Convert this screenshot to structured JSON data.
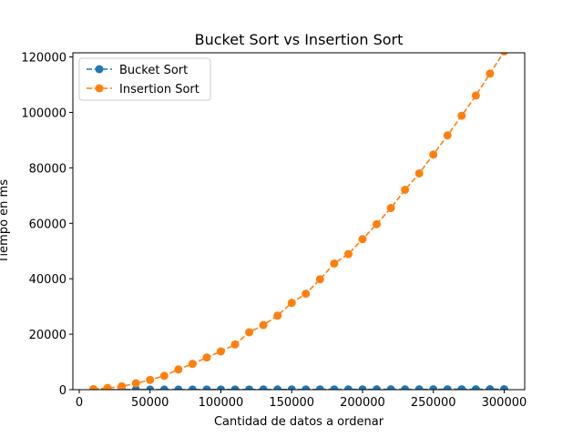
{
  "chart_data": {
    "type": "line",
    "title": "Bucket Sort vs Insertion Sort",
    "xlabel": "Cantidad de datos a ordenar",
    "ylabel": "Tiempo en ms",
    "xlim": [
      -4500,
      314500
    ],
    "ylim": [
      0,
      121500
    ],
    "x_ticks": [
      0,
      50000,
      100000,
      150000,
      200000,
      250000,
      300000
    ],
    "y_ticks": [
      0,
      20000,
      40000,
      60000,
      80000,
      100000,
      120000
    ],
    "grid": false,
    "legend_position": "top-left",
    "x": [
      10000,
      20000,
      30000,
      40000,
      50000,
      60000,
      70000,
      80000,
      90000,
      100000,
      110000,
      120000,
      130000,
      140000,
      150000,
      160000,
      170000,
      180000,
      190000,
      200000,
      210000,
      220000,
      230000,
      240000,
      250000,
      260000,
      270000,
      280000,
      290000,
      300000
    ],
    "series": [
      {
        "name": "Bucket Sort",
        "color": "#1f77b4",
        "line_style": "dashed",
        "marker": "circle",
        "values": [
          5,
          10,
          15,
          20,
          25,
          30,
          35,
          40,
          45,
          50,
          55,
          60,
          65,
          70,
          75,
          80,
          85,
          90,
          95,
          100,
          105,
          110,
          115,
          120,
          125,
          130,
          135,
          140,
          145,
          150
        ]
      },
      {
        "name": "Insertion Sort",
        "color": "#ff7f0e",
        "line_style": "dashed",
        "marker": "circle",
        "values": [
          200,
          600,
          1200,
          2300,
          3500,
          5000,
          7300,
          9300,
          11600,
          13800,
          16300,
          20700,
          23300,
          26700,
          31300,
          34600,
          39800,
          45500,
          48900,
          54300,
          59700,
          65500,
          72100,
          78000,
          84800,
          91700,
          98800,
          106100,
          114000,
          122000
        ]
      }
    ]
  }
}
